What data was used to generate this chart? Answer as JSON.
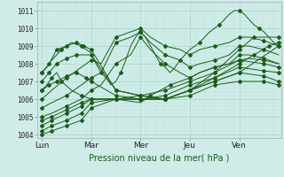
{
  "xlabel": "Pression niveau de la mer( hPa )",
  "bg_color": "#d0ece8",
  "grid_color_major": "#b0d8d0",
  "grid_color_minor": "#c0e4dc",
  "line_color": "#1a5c1a",
  "ylim": [
    1003.8,
    1011.5
  ],
  "xlim": [
    -0.1,
    4.85
  ],
  "yticks": [
    1004,
    1005,
    1006,
    1007,
    1008,
    1009,
    1010,
    1011
  ],
  "xtick_labels": [
    "Lun",
    "Mar",
    "Mer",
    "Jeu",
    "Ven"
  ],
  "xtick_pos": [
    0.0,
    1.0,
    2.0,
    3.0,
    4.0
  ],
  "series": [
    {
      "x": [
        0.0,
        0.1,
        0.2,
        0.3,
        0.4,
        0.5,
        0.6,
        0.7,
        0.8,
        0.9,
        1.0,
        1.1,
        1.2,
        1.3,
        1.4,
        1.5,
        1.6,
        1.7,
        1.8,
        1.9,
        2.0,
        2.1,
        2.2,
        2.3,
        2.4,
        2.5,
        2.6,
        2.7,
        2.8,
        2.9,
        3.0,
        3.1,
        3.2,
        3.3,
        3.4,
        3.5,
        3.6,
        3.7,
        3.8,
        3.9,
        4.0,
        4.1,
        4.2,
        4.3,
        4.4,
        4.5,
        4.6,
        4.7,
        4.8
      ],
      "y": [
        1007.5,
        1007.8,
        1008.2,
        1008.5,
        1008.8,
        1009.0,
        1009.2,
        1009.1,
        1009.0,
        1008.8,
        1008.6,
        1008.0,
        1007.5,
        1007.2,
        1006.8,
        1007.0,
        1007.5,
        1008.2,
        1009.0,
        1009.5,
        1009.8,
        1009.5,
        1009.0,
        1008.5,
        1008.0,
        1007.8,
        1007.5,
        1007.8,
        1008.2,
        1008.5,
        1008.8,
        1009.0,
        1009.2,
        1009.5,
        1009.8,
        1010.0,
        1010.2,
        1010.5,
        1010.8,
        1011.0,
        1011.0,
        1010.8,
        1010.5,
        1010.2,
        1010.0,
        1009.8,
        1009.5,
        1009.2,
        1009.0
      ]
    },
    {
      "x": [
        0.0,
        0.2,
        0.5,
        0.8,
        1.0,
        1.2,
        1.5,
        1.8,
        2.0,
        2.2,
        2.5,
        2.8,
        3.0,
        3.2,
        3.5,
        3.8,
        4.0,
        4.2,
        4.5,
        4.8
      ],
      "y": [
        1006.0,
        1006.5,
        1007.2,
        1007.8,
        1008.2,
        1008.0,
        1009.5,
        1009.8,
        1010.0,
        1009.5,
        1009.0,
        1008.8,
        1008.5,
        1008.8,
        1009.0,
        1009.2,
        1009.5,
        1009.5,
        1009.3,
        1009.0
      ]
    },
    {
      "x": [
        0.0,
        0.2,
        0.5,
        0.8,
        1.0,
        1.2,
        1.5,
        1.8,
        2.0,
        2.2,
        2.5,
        2.8,
        3.0,
        3.2,
        3.5,
        3.8,
        4.0,
        4.2,
        4.5,
        4.8
      ],
      "y": [
        1005.5,
        1005.8,
        1006.2,
        1006.8,
        1007.2,
        1007.5,
        1009.2,
        1009.5,
        1009.8,
        1009.2,
        1008.5,
        1008.2,
        1007.8,
        1008.0,
        1008.2,
        1008.5,
        1009.0,
        1009.0,
        1008.8,
        1008.5
      ]
    },
    {
      "x": [
        0.0,
        0.2,
        0.5,
        0.8,
        1.0,
        1.2,
        1.5,
        1.8,
        2.0,
        2.2,
        2.5,
        2.8,
        3.0,
        3.2,
        3.5,
        3.8,
        4.0,
        4.2,
        4.5,
        4.8
      ],
      "y": [
        1005.0,
        1005.2,
        1005.6,
        1006.0,
        1006.5,
        1006.8,
        1008.0,
        1008.5,
        1009.5,
        1008.8,
        1008.0,
        1007.5,
        1007.2,
        1007.5,
        1007.8,
        1008.0,
        1008.5,
        1008.5,
        1008.3,
        1008.0
      ]
    },
    {
      "x": [
        0.0,
        0.2,
        0.5,
        0.8,
        1.0,
        1.5,
        2.0,
        2.5,
        3.0,
        3.5,
        4.0,
        4.5,
        4.8
      ],
      "y": [
        1004.8,
        1005.0,
        1005.4,
        1005.8,
        1006.0,
        1006.0,
        1006.2,
        1006.5,
        1007.0,
        1007.5,
        1008.2,
        1008.0,
        1007.8
      ]
    },
    {
      "x": [
        0.0,
        0.2,
        0.5,
        0.8,
        1.0,
        1.5,
        2.0,
        2.5,
        3.0,
        3.5,
        4.0,
        4.5,
        4.8
      ],
      "y": [
        1004.5,
        1004.8,
        1005.2,
        1005.6,
        1006.0,
        1006.0,
        1006.0,
        1006.2,
        1006.8,
        1007.2,
        1007.8,
        1007.6,
        1007.5
      ]
    },
    {
      "x": [
        0.0,
        0.2,
        0.5,
        0.8,
        1.0,
        1.5,
        2.0,
        2.5,
        3.0,
        3.5,
        4.0,
        4.5,
        4.8
      ],
      "y": [
        1004.2,
        1004.5,
        1004.8,
        1005.2,
        1005.8,
        1006.0,
        1006.0,
        1006.0,
        1006.5,
        1007.0,
        1007.5,
        1007.3,
        1007.0
      ]
    },
    {
      "x": [
        0.0,
        0.2,
        0.5,
        0.8,
        1.0,
        1.5,
        2.0,
        2.5,
        3.0,
        3.5,
        4.0,
        4.5,
        4.8
      ],
      "y": [
        1004.0,
        1004.2,
        1004.5,
        1004.8,
        1005.5,
        1006.0,
        1006.0,
        1006.0,
        1006.2,
        1006.8,
        1007.0,
        1007.0,
        1006.8
      ]
    },
    {
      "x": [
        0.0,
        0.15,
        0.3,
        0.5,
        0.7,
        0.9,
        1.0,
        1.5,
        2.0,
        2.5,
        3.0,
        3.5,
        4.0,
        4.8
      ],
      "y": [
        1006.5,
        1006.8,
        1007.0,
        1007.3,
        1007.5,
        1007.2,
        1007.0,
        1006.2,
        1006.0,
        1006.0,
        1006.5,
        1007.0,
        1007.5,
        1009.0
      ]
    },
    {
      "x": [
        0.0,
        0.15,
        0.3,
        0.5,
        0.7,
        1.0,
        1.5,
        2.0,
        2.5,
        3.0,
        3.5,
        4.0,
        4.3,
        4.6,
        4.8
      ],
      "y": [
        1007.0,
        1007.5,
        1008.0,
        1008.3,
        1008.5,
        1008.5,
        1006.5,
        1006.2,
        1006.0,
        1006.5,
        1007.2,
        1008.0,
        1008.5,
        1009.0,
        1009.2
      ]
    },
    {
      "x": [
        0.0,
        0.15,
        0.3,
        0.5,
        0.7,
        0.85,
        1.0,
        1.5,
        2.0,
        2.5,
        3.0,
        3.5,
        4.0,
        4.3,
        4.8
      ],
      "y": [
        1007.5,
        1008.0,
        1008.8,
        1009.0,
        1009.2,
        1009.0,
        1008.8,
        1006.5,
        1006.2,
        1006.0,
        1006.5,
        1007.5,
        1008.8,
        1009.5,
        1009.5
      ]
    },
    {
      "x": [
        0.0,
        0.1,
        0.2,
        0.3,
        0.4,
        0.6,
        0.8,
        1.0,
        1.5,
        2.0,
        2.2,
        2.4,
        2.6,
        2.8,
        3.0,
        3.2,
        3.5,
        3.8,
        4.0,
        4.2,
        4.5,
        4.8
      ],
      "y": [
        1006.5,
        1006.8,
        1007.2,
        1007.5,
        1007.0,
        1006.5,
        1006.2,
        1006.0,
        1006.0,
        1005.8,
        1006.2,
        1006.5,
        1006.8,
        1007.0,
        1007.2,
        1007.5,
        1007.8,
        1008.0,
        1008.2,
        1008.3,
        1008.2,
        1008.0
      ]
    }
  ],
  "marker": "D",
  "markersize": 2.0,
  "linewidth": 0.7,
  "xlabel_fontsize": 7,
  "ytick_fontsize": 5.5,
  "xtick_fontsize": 6.5
}
